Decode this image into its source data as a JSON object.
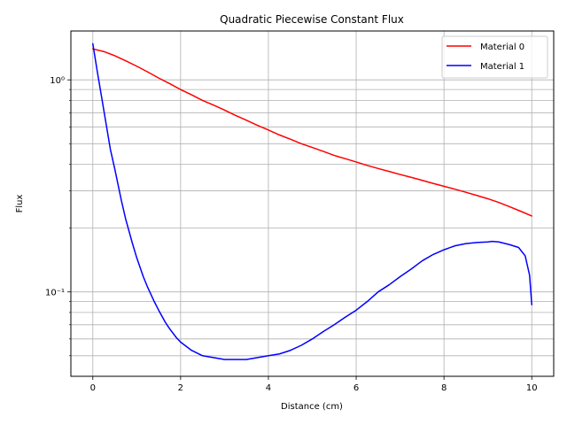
{
  "chart_data": {
    "type": "line",
    "title": "Quadratic Piecewise Constant Flux",
    "xlabel": "Distance (cm)",
    "ylabel": "Flux",
    "xlim": [
      -0.5,
      10.5
    ],
    "ylim": [
      0.04,
      1.7
    ],
    "yscale": "log",
    "grid": true,
    "legend_position": "top-right",
    "x_ticks": [
      0,
      2,
      4,
      6,
      8,
      10
    ],
    "x_tick_labels": [
      "0",
      "2",
      "4",
      "6",
      "8",
      "10"
    ],
    "y_major_ticks": [
      0.1,
      1
    ],
    "y_major_tick_labels": [
      "10⁻¹",
      "10⁰"
    ],
    "y_minor_ticks": [
      0.05,
      0.06,
      0.07,
      0.08,
      0.09,
      0.2,
      0.3,
      0.4,
      0.5,
      0.6,
      0.7,
      0.8,
      0.9
    ],
    "series": [
      {
        "name": "Material 0",
        "color": "#ff0000",
        "x": [
          0,
          0.25,
          0.5,
          0.75,
          1.0,
          1.25,
          1.5,
          1.75,
          2.0,
          2.25,
          2.5,
          2.75,
          3.0,
          3.25,
          3.5,
          3.75,
          4.0,
          4.25,
          4.5,
          4.75,
          5.0,
          5.25,
          5.5,
          5.75,
          6.0,
          6.25,
          6.5,
          6.75,
          7.0,
          7.25,
          7.5,
          7.75,
          8.0,
          8.25,
          8.5,
          8.75,
          9.0,
          9.25,
          9.5,
          9.75,
          10.0
        ],
        "y": [
          1.4,
          1.36,
          1.3,
          1.23,
          1.16,
          1.09,
          1.02,
          0.96,
          0.9,
          0.85,
          0.8,
          0.76,
          0.72,
          0.68,
          0.645,
          0.61,
          0.58,
          0.55,
          0.525,
          0.5,
          0.48,
          0.46,
          0.44,
          0.425,
          0.41,
          0.395,
          0.382,
          0.37,
          0.358,
          0.347,
          0.336,
          0.325,
          0.315,
          0.305,
          0.295,
          0.285,
          0.275,
          0.264,
          0.252,
          0.24,
          0.228
        ]
      },
      {
        "name": "Material 1",
        "color": "#0000ff",
        "x": [
          0,
          0.1,
          0.25,
          0.4,
          0.5,
          0.65,
          0.75,
          0.9,
          1.0,
          1.15,
          1.25,
          1.4,
          1.5,
          1.65,
          1.75,
          1.9,
          2.0,
          2.25,
          2.5,
          2.75,
          3.0,
          3.25,
          3.5,
          3.75,
          4.0,
          4.25,
          4.5,
          4.75,
          5.0,
          5.25,
          5.5,
          5.75,
          6.0,
          6.25,
          6.5,
          6.75,
          7.0,
          7.25,
          7.5,
          7.75,
          8.0,
          8.25,
          8.5,
          8.75,
          9.0,
          9.1,
          9.25,
          9.5,
          9.7,
          9.85,
          9.95,
          10.0
        ],
        "y": [
          1.48,
          1.1,
          0.72,
          0.47,
          0.38,
          0.27,
          0.22,
          0.17,
          0.145,
          0.118,
          0.105,
          0.09,
          0.082,
          0.072,
          0.067,
          0.061,
          0.058,
          0.053,
          0.05,
          0.049,
          0.048,
          0.048,
          0.048,
          0.049,
          0.05,
          0.051,
          0.053,
          0.056,
          0.06,
          0.065,
          0.07,
          0.076,
          0.082,
          0.09,
          0.1,
          0.108,
          0.118,
          0.128,
          0.14,
          0.15,
          0.158,
          0.165,
          0.169,
          0.171,
          0.172,
          0.173,
          0.172,
          0.167,
          0.162,
          0.148,
          0.12,
          0.087
        ]
      }
    ]
  }
}
